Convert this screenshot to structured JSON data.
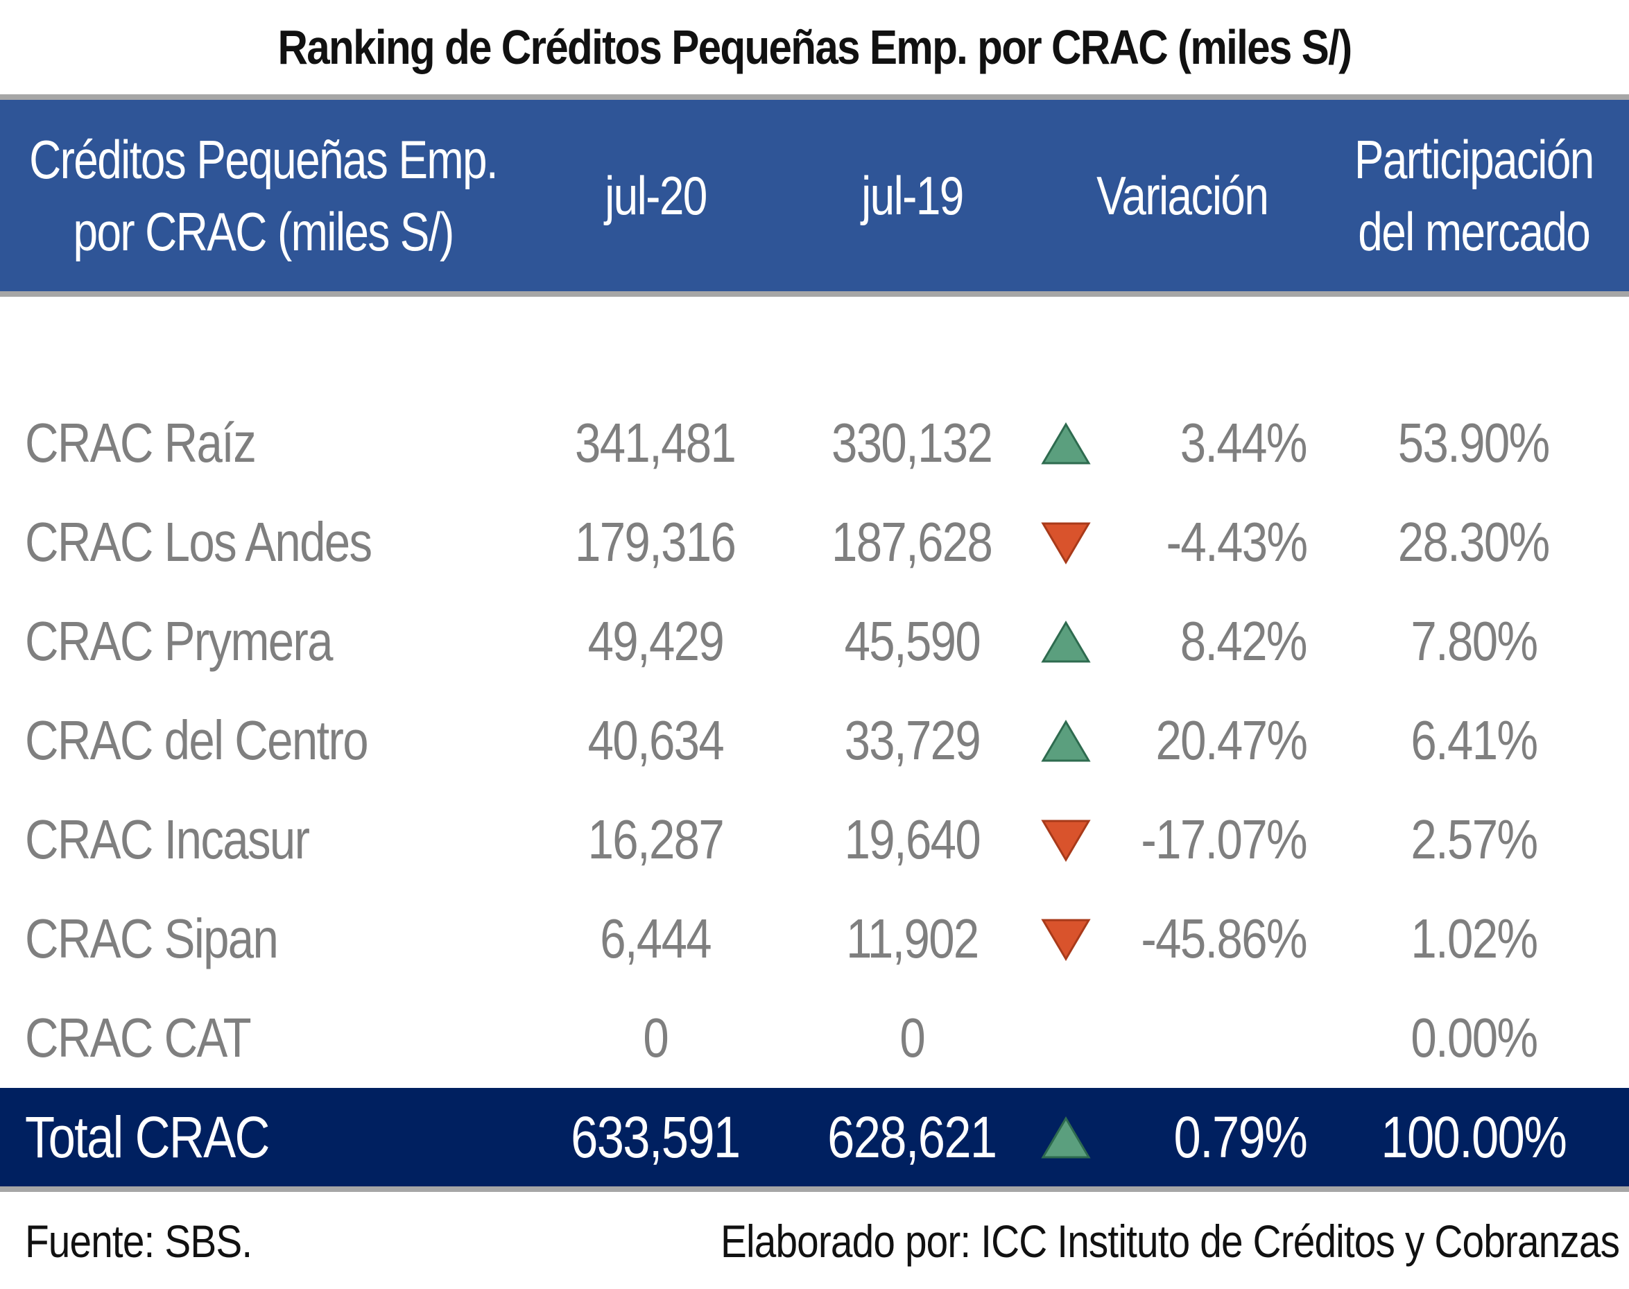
{
  "title": "Ranking de Créditos Pequeñas Emp. por CRAC (miles S/)",
  "header": {
    "name_line1": "Créditos Pequeñas Emp.",
    "name_line2": "por CRAC (miles S/)",
    "jul20": "jul-20",
    "jul19": "jul-19",
    "variation": "Variación",
    "share_line1": "Participación",
    "share_line2": "del mercado"
  },
  "colors": {
    "up": "#5b9f7e",
    "down": "#d9532c",
    "header_bg": "#2f5597",
    "total_bg": "#002060"
  },
  "chart_data": {
    "type": "table",
    "title": "Ranking de Créditos Pequeñas Emp. por CRAC (miles S/)",
    "columns": [
      "Créditos Pequeñas Emp. por CRAC (miles S/)",
      "jul-20",
      "jul-19",
      "Variación",
      "Participación del mercado"
    ],
    "rows": [
      {
        "name": "CRAC Raíz",
        "jul20": "341,481",
        "jul19": "330,132",
        "trend": "up",
        "variation": "3.44%",
        "share": "53.90%"
      },
      {
        "name": "CRAC Los Andes",
        "jul20": "179,316",
        "jul19": "187,628",
        "trend": "down",
        "variation": "-4.43%",
        "share": "28.30%"
      },
      {
        "name": "CRAC Prymera",
        "jul20": "49,429",
        "jul19": "45,590",
        "trend": "up",
        "variation": "8.42%",
        "share": "7.80%"
      },
      {
        "name": "CRAC del Centro",
        "jul20": "40,634",
        "jul19": "33,729",
        "trend": "up",
        "variation": "20.47%",
        "share": "6.41%"
      },
      {
        "name": "CRAC Incasur",
        "jul20": "16,287",
        "jul19": "19,640",
        "trend": "down",
        "variation": "-17.07%",
        "share": "2.57%"
      },
      {
        "name": "CRAC Sipan",
        "jul20": "6,444",
        "jul19": "11,902",
        "trend": "down",
        "variation": "-45.86%",
        "share": "1.02%"
      },
      {
        "name": "CRAC CAT",
        "jul20": "0",
        "jul19": "0",
        "trend": "none",
        "variation": "",
        "share": "0.00%"
      }
    ],
    "total": {
      "name": "Total CRAC",
      "jul20": "633,591",
      "jul19": "628,621",
      "trend": "up",
      "variation": "0.79%",
      "share": "100.00%"
    }
  },
  "footer": {
    "source": "Fuente: SBS.",
    "credit": "Elaborado por: ICC Instituto de Créditos y Cobranzas"
  }
}
